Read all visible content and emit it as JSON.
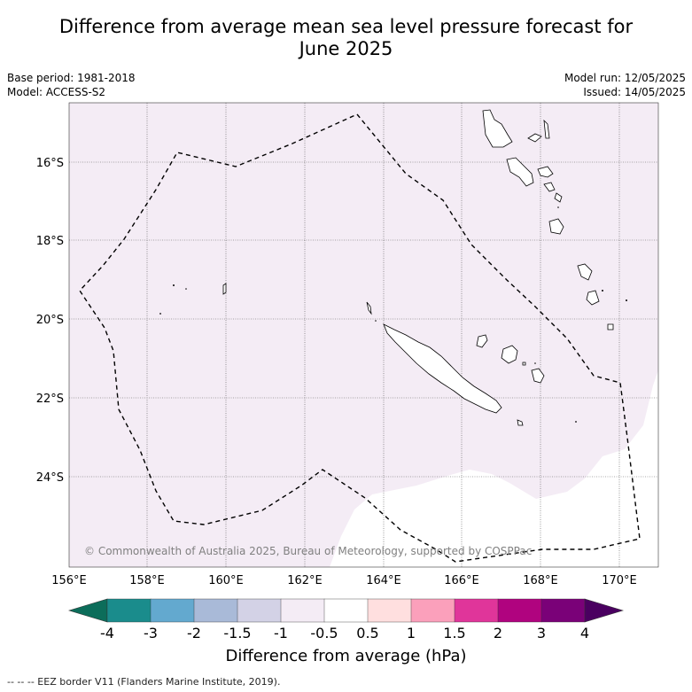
{
  "title_line1": "Difference from average mean sea level pressure forecast for",
  "title_line2": "June 2025",
  "meta_left": {
    "base_period": "Base period: 1981-2018",
    "model": "Model: ACCESS-S2"
  },
  "meta_right": {
    "model_run": "Model run: 12/05/2025",
    "issued": "Issued: 14/05/2025"
  },
  "lat_labels": [
    "16°S",
    "18°S",
    "20°S",
    "22°S",
    "24°S"
  ],
  "lon_labels": [
    "156°E",
    "158°E",
    "160°E",
    "162°E",
    "164°E",
    "166°E",
    "168°E",
    "170°E"
  ],
  "copyright": "© Commonwealth of Australia 2025, Bureau of Meteorology, supported by COSPPac",
  "colorbar": {
    "labels": [
      "-4",
      "-3",
      "-2",
      "-1.5",
      "-1",
      "-0.5",
      "0.5",
      "1",
      "1.5",
      "2",
      "3",
      "4"
    ],
    "colors": [
      "#1a8c8c",
      "#63a9cf",
      "#a9bad8",
      "#d3d2e6",
      "#f4ecf5",
      "#ffffff",
      "#ffdfdf",
      "#fba0bb",
      "#e0359a",
      "#b0037f",
      "#7a0178"
    ],
    "under_color": "#0c6d5a",
    "over_color": "#4a0060",
    "title": "Difference from average (hPa)"
  },
  "map_colors": {
    "anomaly_fill": "#f4ecf5",
    "neutral_fill": "#ffffff"
  },
  "footnote": "--  --  -- EEZ border V11 (Flanders Marine Institute, 2019)."
}
